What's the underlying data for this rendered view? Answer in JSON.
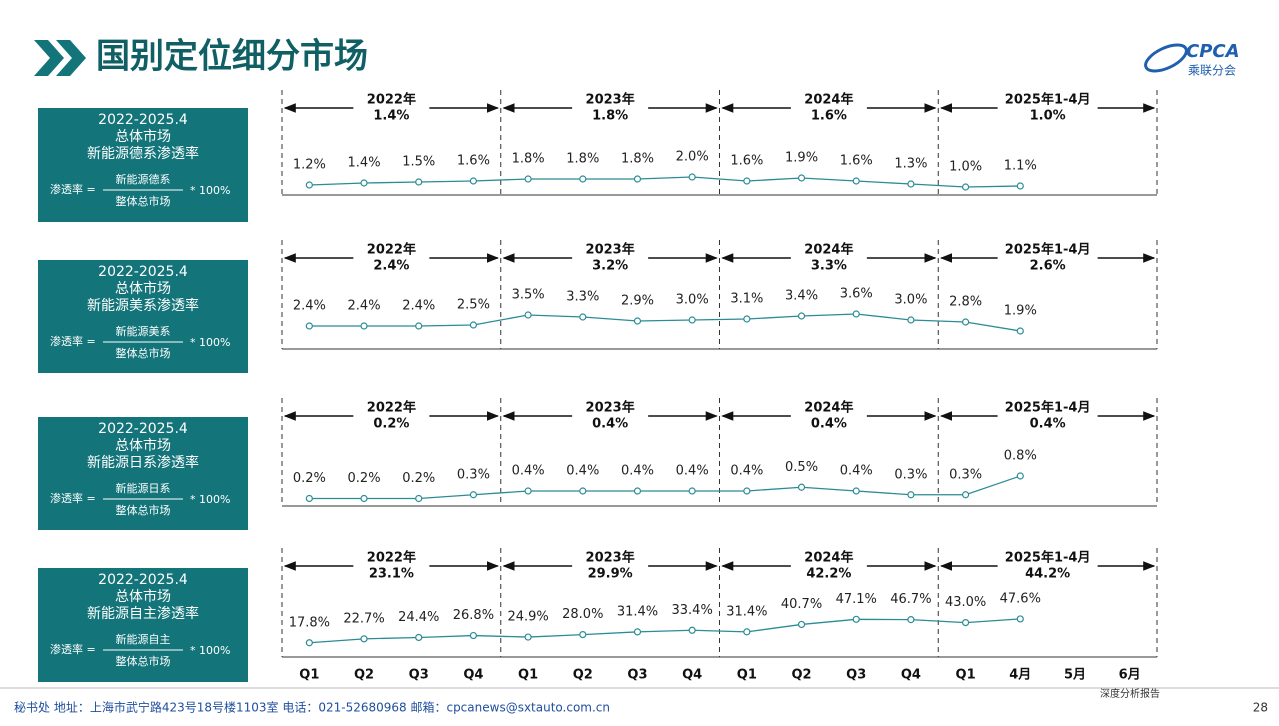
{
  "header": {
    "title": "国别定位细分市场",
    "logo": "CPCA",
    "logo_sub": "乘联分会"
  },
  "footer": {
    "address": "秘书处   地址：上海市武宁路423号18号楼1103室  电话：021-52680968   邮箱：cpcanews@sxtauto.com.cn",
    "report": "深度分析报告",
    "page": "28"
  },
  "chart_data": [
    {
      "type": "line",
      "period_label": "2022-2025.4",
      "market": "总体市场",
      "title": "新能源德系渗透率",
      "formula": {
        "lhs": "渗透率 =",
        "numerator": "新能源德系",
        "denominator": "整体总市场",
        "factor": "* 100%"
      },
      "periods": [
        "2022年",
        "2023年",
        "2024年",
        "2025年1-4月"
      ],
      "period_values": [
        "1.4%",
        "1.8%",
        "1.6%",
        "1.0%"
      ],
      "categories": [
        "Q1",
        "Q2",
        "Q3",
        "Q4",
        "Q1",
        "Q2",
        "Q3",
        "Q4",
        "Q1",
        "Q2",
        "Q3",
        "Q4",
        "Q1",
        "4月",
        "5月",
        "6月"
      ],
      "values": [
        1.2,
        1.4,
        1.5,
        1.6,
        1.8,
        1.8,
        1.8,
        2.0,
        1.6,
        1.9,
        1.6,
        1.3,
        1.0,
        1.1,
        null,
        null
      ],
      "value_labels": [
        "1.2%",
        "1.4%",
        "1.5%",
        "1.6%",
        "1.8%",
        "1.8%",
        "1.8%",
        "2.0%",
        "1.6%",
        "1.9%",
        "1.6%",
        "1.3%",
        "1.0%",
        "1.1%",
        null,
        null
      ],
      "ylim": [
        0,
        6
      ],
      "color": "#2a8c94"
    },
    {
      "type": "line",
      "period_label": "2022-2025.4",
      "market": "总体市场",
      "title": "新能源美系渗透率",
      "formula": {
        "lhs": "渗透率 =",
        "numerator": "新能源美系",
        "denominator": "整体总市场",
        "factor": "* 100%"
      },
      "periods": [
        "2022年",
        "2023年",
        "2024年",
        "2025年1-4月"
      ],
      "period_values": [
        "2.4%",
        "3.2%",
        "3.3%",
        "2.6%"
      ],
      "categories": [
        "Q1",
        "Q2",
        "Q3",
        "Q4",
        "Q1",
        "Q2",
        "Q3",
        "Q4",
        "Q1",
        "Q2",
        "Q3",
        "Q4",
        "Q1",
        "4月",
        "5月",
        "6月"
      ],
      "values": [
        2.4,
        2.4,
        2.4,
        2.5,
        3.5,
        3.3,
        2.9,
        3.0,
        3.1,
        3.4,
        3.6,
        3.0,
        2.8,
        1.9,
        null,
        null
      ],
      "value_labels": [
        "2.4%",
        "2.4%",
        "2.4%",
        "2.5%",
        "3.5%",
        "3.3%",
        "2.9%",
        "3.0%",
        "3.1%",
        "3.4%",
        "3.6%",
        "3.0%",
        "2.8%",
        "1.9%",
        null,
        null
      ],
      "ylim": [
        0,
        6
      ],
      "color": "#2a8c94"
    },
    {
      "type": "line",
      "period_label": "2022-2025.4",
      "market": "总体市场",
      "title": "新能源日系渗透率",
      "formula": {
        "lhs": "渗透率 =",
        "numerator": "新能源日系",
        "denominator": "整体总市场",
        "factor": "* 100%"
      },
      "periods": [
        "2022年",
        "2023年",
        "2024年",
        "2025年1-4月"
      ],
      "period_values": [
        "0.2%",
        "0.4%",
        "0.4%",
        "0.4%"
      ],
      "categories": [
        "Q1",
        "Q2",
        "Q3",
        "Q4",
        "Q1",
        "Q2",
        "Q3",
        "Q4",
        "Q1",
        "Q2",
        "Q3",
        "Q4",
        "Q1",
        "4月",
        "5月",
        "6月"
      ],
      "values": [
        0.2,
        0.2,
        0.2,
        0.3,
        0.4,
        0.4,
        0.4,
        0.4,
        0.4,
        0.5,
        0.4,
        0.3,
        0.3,
        0.8,
        null,
        null
      ],
      "value_labels": [
        "0.2%",
        "0.2%",
        "0.2%",
        "0.3%",
        "0.4%",
        "0.4%",
        "0.4%",
        "0.4%",
        "0.4%",
        "0.5%",
        "0.4%",
        "0.3%",
        "0.3%",
        "0.8%",
        null,
        null
      ],
      "ylim": [
        0,
        1.6
      ],
      "color": "#2a8c94"
    },
    {
      "type": "line",
      "period_label": "2022-2025.4",
      "market": "总体市场",
      "title": "新能源自主渗透率",
      "formula": {
        "lhs": "渗透率 =",
        "numerator": "新能源自主",
        "denominator": "整体总市场",
        "factor": "* 100%"
      },
      "periods": [
        "2022年",
        "2023年",
        "2024年",
        "2025年1-4月"
      ],
      "period_values": [
        "23.1%",
        "29.9%",
        "42.2%",
        "44.2%"
      ],
      "categories": [
        "Q1",
        "Q2",
        "Q3",
        "Q4",
        "Q1",
        "Q2",
        "Q3",
        "Q4",
        "Q1",
        "Q2",
        "Q3",
        "Q4",
        "Q1",
        "4月",
        "5月",
        "6月"
      ],
      "values": [
        17.8,
        22.7,
        24.4,
        26.8,
        24.9,
        28.0,
        31.4,
        33.4,
        31.4,
        40.7,
        47.1,
        46.7,
        43.0,
        47.6,
        null,
        null
      ],
      "value_labels": [
        "17.8%",
        "22.7%",
        "24.4%",
        "26.8%",
        "24.9%",
        "28.0%",
        "31.4%",
        "33.4%",
        "31.4%",
        "40.7%",
        "47.1%",
        "46.7%",
        "43.0%",
        "47.6%",
        null,
        null
      ],
      "ylim": [
        0,
        75
      ],
      "color": "#2a8c94"
    }
  ]
}
